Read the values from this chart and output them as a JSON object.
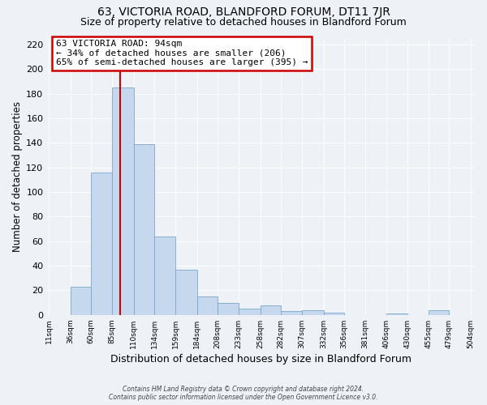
{
  "title": "63, VICTORIA ROAD, BLANDFORD FORUM, DT11 7JR",
  "subtitle": "Size of property relative to detached houses in Blandford Forum",
  "xlabel": "Distribution of detached houses by size in Blandford Forum",
  "ylabel": "Number of detached properties",
  "bar_color": "#c5d8ed",
  "bar_edge_color": "#7aa8cc",
  "bin_labels": [
    "11sqm",
    "36sqm",
    "60sqm",
    "85sqm",
    "110sqm",
    "134sqm",
    "159sqm",
    "184sqm",
    "208sqm",
    "233sqm",
    "258sqm",
    "282sqm",
    "307sqm",
    "332sqm",
    "356sqm",
    "381sqm",
    "406sqm",
    "430sqm",
    "455sqm",
    "479sqm",
    "504sqm"
  ],
  "bar_heights": [
    0,
    23,
    116,
    185,
    139,
    64,
    37,
    15,
    10,
    5,
    8,
    3,
    4,
    2,
    0,
    0,
    1,
    0,
    4,
    0,
    0
  ],
  "bin_edges": [
    11,
    36,
    60,
    85,
    110,
    134,
    159,
    184,
    208,
    233,
    258,
    282,
    307,
    332,
    356,
    381,
    406,
    430,
    455,
    479,
    504
  ],
  "vline_x": 94,
  "vline_color": "#cc0000",
  "ylim": [
    0,
    225
  ],
  "yticks": [
    0,
    20,
    40,
    60,
    80,
    100,
    120,
    140,
    160,
    180,
    200,
    220
  ],
  "annotation_title": "63 VICTORIA ROAD: 94sqm",
  "annotation_line1": "← 34% of detached houses are smaller (206)",
  "annotation_line2": "65% of semi-detached houses are larger (395) →",
  "annotation_box_color": "#ffffff",
  "annotation_box_edge": "#cc0000",
  "footer1": "Contains HM Land Registry data © Crown copyright and database right 2024.",
  "footer2": "Contains public sector information licensed under the Open Government Licence v3.0.",
  "background_color": "#eef2f7",
  "grid_color": "#ffffff",
  "title_fontsize": 10,
  "subtitle_fontsize": 9
}
